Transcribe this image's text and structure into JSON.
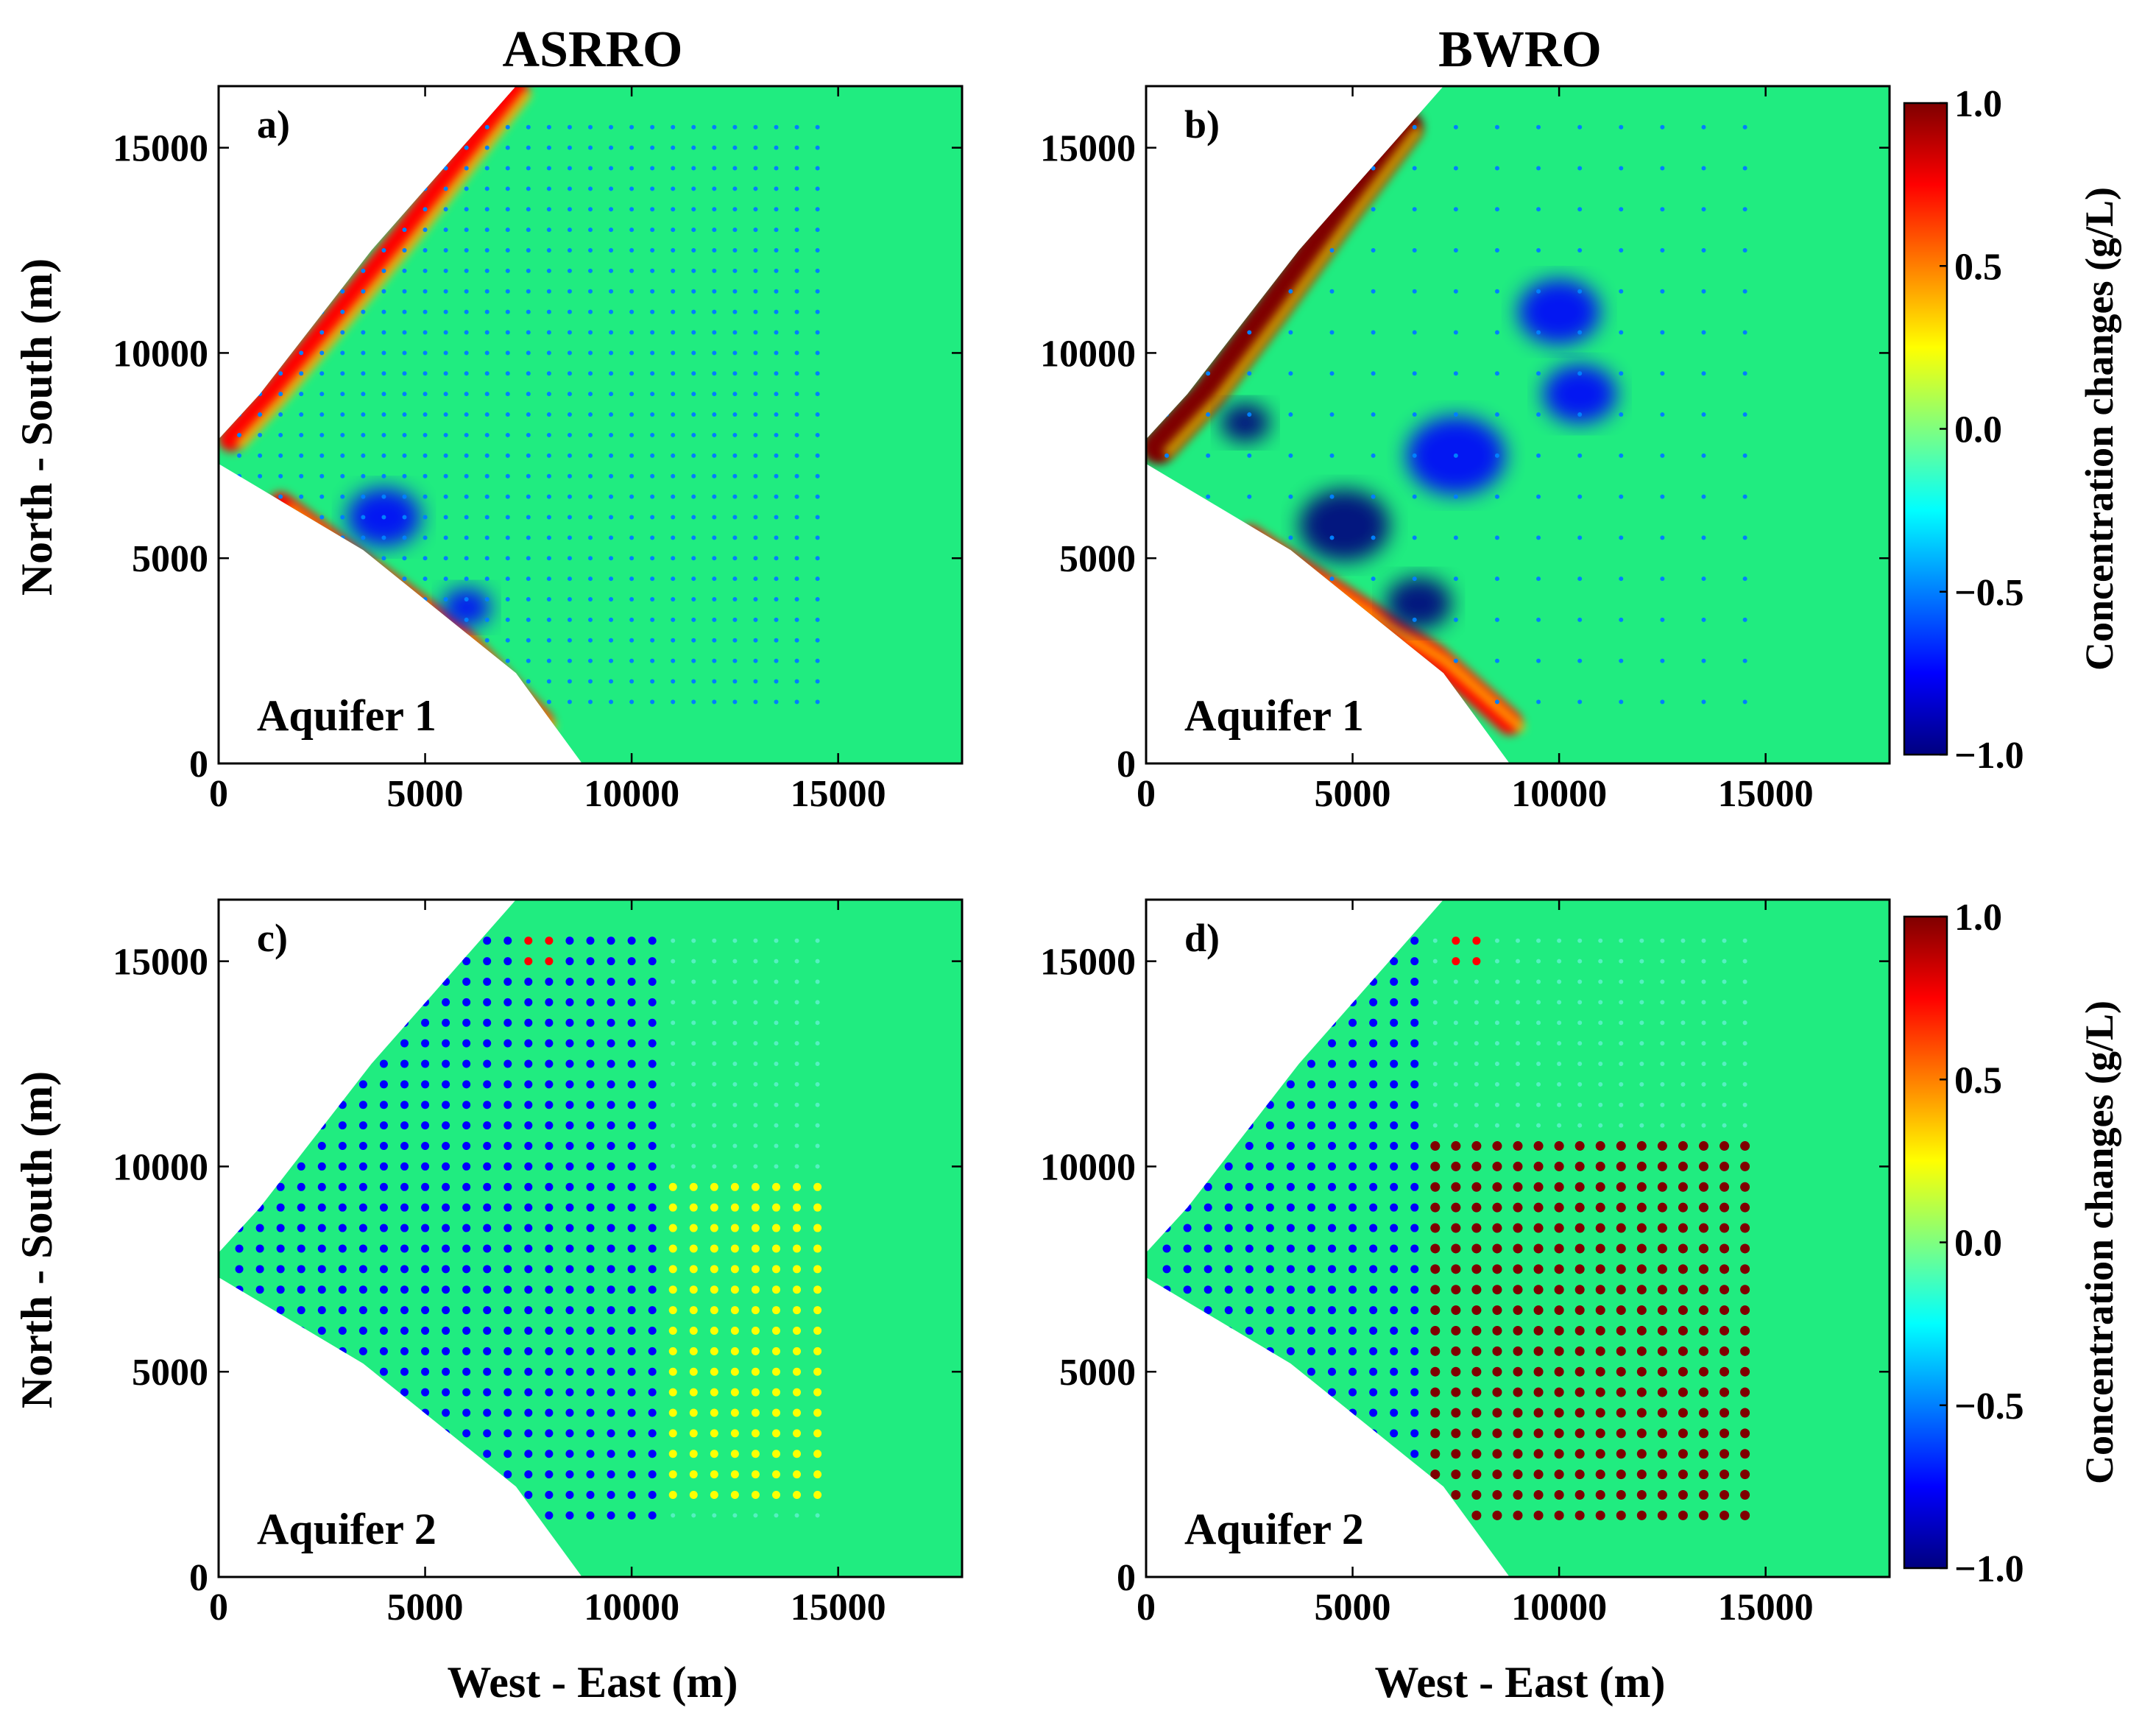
{
  "chart_data": [
    {
      "type": "heatmap",
      "panel": "a)",
      "column_title": "ASRRO",
      "annotation": "Aquifer 1",
      "xlabel": "",
      "ylabel": "North - South (m)",
      "xlim": [
        0,
        18000
      ],
      "ylim": [
        0,
        16500
      ],
      "xticks": [
        0,
        5000,
        10000,
        15000
      ],
      "yticks": [
        0,
        5000,
        10000,
        15000
      ],
      "domain_boundary": [
        [
          8800,
          0
        ],
        [
          7200,
          2200
        ],
        [
          3500,
          5200
        ],
        [
          0,
          7300
        ],
        [
          0,
          7900
        ],
        [
          1000,
          9000
        ],
        [
          3700,
          12500
        ],
        [
          7200,
          16500
        ],
        [
          18000,
          16500
        ],
        [
          18000,
          0
        ]
      ],
      "well_grid": {
        "x_start": 500,
        "x_end": 14500,
        "y_start": 1500,
        "y_end": 15500,
        "spacing": 500
      },
      "features": [
        {
          "kind": "band",
          "sign": "positive",
          "path": [
            [
              300,
              7900
            ],
            [
              1300,
              9000
            ],
            [
              2700,
              10700
            ],
            [
              4500,
              12900
            ],
            [
              7200,
              16400
            ]
          ]
        },
        {
          "kind": "band",
          "sign": "positive",
          "path": [
            [
              1500,
              6300
            ],
            [
              3500,
              4800
            ],
            [
              5800,
              3100
            ],
            [
              7800,
              1000
            ]
          ]
        },
        {
          "kind": "blob",
          "sign": "negative",
          "x": 4000,
          "y": 6000,
          "r": 900
        },
        {
          "kind": "blob",
          "sign": "negative",
          "x": 6000,
          "y": 3800,
          "r": 600
        }
      ]
    },
    {
      "type": "heatmap",
      "panel": "b)",
      "column_title": "BWRO",
      "annotation": "Aquifer 1",
      "xlabel": "",
      "ylabel": "",
      "xlim": [
        0,
        18000
      ],
      "ylim": [
        0,
        16500
      ],
      "xticks": [
        0,
        5000,
        10000,
        15000
      ],
      "yticks": [
        0,
        5000,
        10000,
        15000
      ],
      "domain_boundary": [
        [
          8800,
          0
        ],
        [
          7200,
          2200
        ],
        [
          3500,
          5200
        ],
        [
          0,
          7300
        ],
        [
          0,
          7900
        ],
        [
          1000,
          9000
        ],
        [
          3700,
          12500
        ],
        [
          7200,
          16500
        ],
        [
          18000,
          16500
        ],
        [
          18000,
          0
        ]
      ],
      "well_grid": {
        "x_start": 500,
        "x_end": 14500,
        "y_start": 1500,
        "y_end": 15500,
        "spacing": 1000
      },
      "features": [
        {
          "kind": "band",
          "sign": "strong-positive",
          "path": [
            [
              300,
              7700
            ],
            [
              1500,
              9000
            ],
            [
              3000,
              11000
            ],
            [
              4800,
              13500
            ],
            [
              6300,
              15500
            ]
          ]
        },
        {
          "kind": "band",
          "sign": "positive",
          "path": [
            [
              2500,
              5500
            ],
            [
              4500,
              4200
            ],
            [
              7000,
              2600
            ],
            [
              8800,
              1000
            ]
          ]
        },
        {
          "kind": "blob",
          "sign": "strong-negative",
          "x": 4800,
          "y": 5800,
          "r": 1100
        },
        {
          "kind": "blob",
          "sign": "strong-negative",
          "x": 6600,
          "y": 3900,
          "r": 800
        },
        {
          "kind": "blob",
          "sign": "strong-negative",
          "x": 2400,
          "y": 8300,
          "r": 600
        },
        {
          "kind": "blob",
          "sign": "negative",
          "x": 7500,
          "y": 7500,
          "r": 1200
        },
        {
          "kind": "blob",
          "sign": "negative",
          "x": 10000,
          "y": 11000,
          "r": 1000
        },
        {
          "kind": "blob",
          "sign": "negative",
          "x": 10500,
          "y": 9000,
          "r": 900
        }
      ]
    },
    {
      "type": "heatmap",
      "panel": "c)",
      "column_title": "",
      "annotation": "Aquifer 2",
      "xlabel": "West - East (m)",
      "ylabel": "North - South (m)",
      "xlim": [
        0,
        18000
      ],
      "ylim": [
        0,
        16500
      ],
      "xticks": [
        0,
        5000,
        10000,
        15000
      ],
      "yticks": [
        0,
        5000,
        10000,
        15000
      ],
      "domain_boundary": [
        [
          8800,
          0
        ],
        [
          7200,
          2200
        ],
        [
          3500,
          5200
        ],
        [
          0,
          7300
        ],
        [
          0,
          7900
        ],
        [
          1000,
          9000
        ],
        [
          3700,
          12500
        ],
        [
          7200,
          16500
        ],
        [
          18000,
          16500
        ],
        [
          18000,
          0
        ]
      ],
      "well_grid": {
        "x_start": 500,
        "x_end": 14500,
        "y_start": 1500,
        "y_end": 15500,
        "spacing": 500
      },
      "features": [
        {
          "kind": "wells",
          "sign": "negative",
          "x_min": 0,
          "x_max": 10500
        },
        {
          "kind": "wells",
          "sign": "weak-positive",
          "x_min": 11000,
          "x_max": 14500,
          "y_min": 2000,
          "y_max": 9500
        },
        {
          "kind": "wells",
          "sign": "positive",
          "x_min": 7500,
          "x_max": 8300,
          "y_min": 14800,
          "y_max": 15500
        }
      ]
    },
    {
      "type": "heatmap",
      "panel": "d)",
      "column_title": "",
      "annotation": "Aquifer 2",
      "xlabel": "West - East (m)",
      "ylabel": "",
      "xlim": [
        0,
        18000
      ],
      "ylim": [
        0,
        16500
      ],
      "xticks": [
        0,
        5000,
        10000,
        15000
      ],
      "yticks": [
        0,
        5000,
        10000,
        15000
      ],
      "domain_boundary": [
        [
          8800,
          0
        ],
        [
          7200,
          2200
        ],
        [
          3500,
          5200
        ],
        [
          0,
          7300
        ],
        [
          0,
          7900
        ],
        [
          1000,
          9000
        ],
        [
          3700,
          12500
        ],
        [
          7200,
          16500
        ],
        [
          18000,
          16500
        ],
        [
          18000,
          0
        ]
      ],
      "well_grid": {
        "x_start": 500,
        "x_end": 14500,
        "y_start": 1500,
        "y_end": 15500,
        "spacing": 500
      },
      "features": [
        {
          "kind": "wells",
          "sign": "negative",
          "x_min": 0,
          "x_max": 6500
        },
        {
          "kind": "wells",
          "sign": "strong-positive",
          "x_min": 7000,
          "x_max": 14500,
          "y_min": 1500,
          "y_max": 10500
        },
        {
          "kind": "wells",
          "sign": "positive",
          "x_min": 7500,
          "x_max": 8300,
          "y_min": 14800,
          "y_max": 15500
        }
      ]
    }
  ],
  "colorbar": {
    "label": "Concentration changes (g/L)",
    "range": [
      -1.0,
      1.0
    ],
    "ticks": [
      1.0,
      0.5,
      0.0,
      -0.5,
      -1.0
    ],
    "tick_labels": [
      "1.0",
      "0.5",
      "0.0",
      "−0.5",
      "−1.0"
    ],
    "colormap": "jet",
    "colors": [
      "#00007f",
      "#0000ff",
      "#007fff",
      "#00ffff",
      "#7fff7f",
      "#ffff00",
      "#ff7f00",
      "#ff0000",
      "#7f0000"
    ],
    "background_color": "#2ef07a",
    "domain_base_color": "#20ec80"
  }
}
